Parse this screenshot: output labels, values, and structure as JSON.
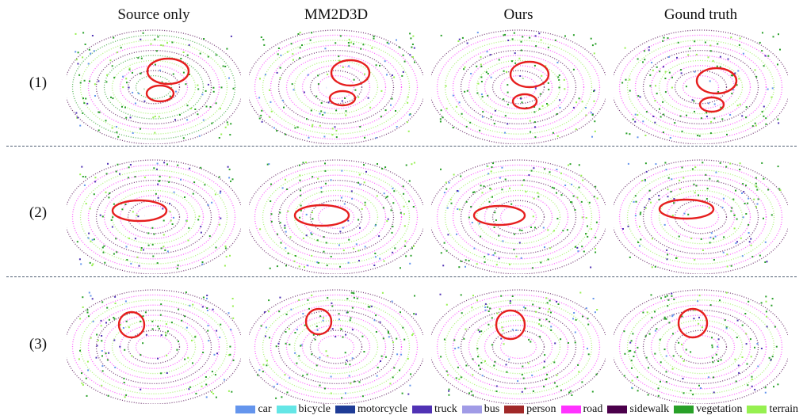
{
  "columns": [
    "Source only",
    "MM2D3D",
    "Ours",
    "Gound truth"
  ],
  "rows": [
    "(1)",
    "(2)",
    "(3)"
  ],
  "legend": [
    {
      "label": "car",
      "color": "#6495ed"
    },
    {
      "label": "bicycle",
      "color": "#64e6e6"
    },
    {
      "label": "motorcycle",
      "color": "#1e3c96"
    },
    {
      "label": "truck",
      "color": "#5032b4"
    },
    {
      "label": "bus",
      "color": "#a09be6"
    },
    {
      "label": "person",
      "color": "#a02828"
    },
    {
      "label": "road",
      "color": "#ff32ff"
    },
    {
      "label": "sidewalk",
      "color": "#4b004b"
    },
    {
      "label": "vegetation",
      "color": "#28a028"
    },
    {
      "label": "terrain",
      "color": "#96f050"
    }
  ],
  "highlight_color": "#e61e1e"
}
